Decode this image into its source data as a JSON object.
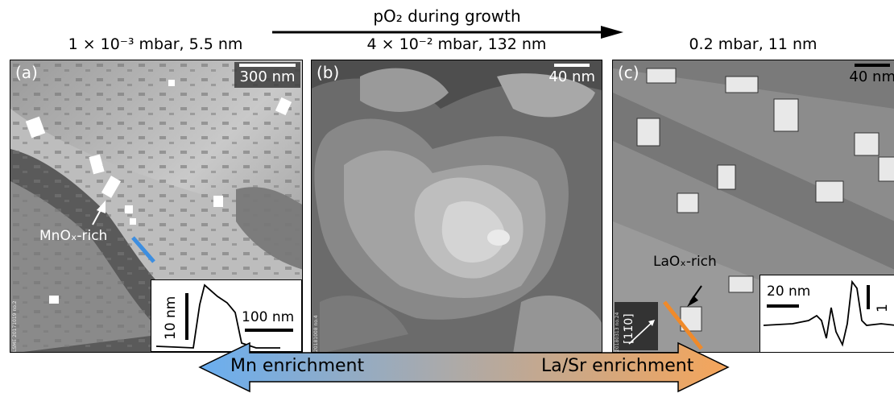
{
  "header": {
    "growth_label": "pO₂ during growth",
    "conditions": [
      "1 × 10⁻³ mbar, 5.5 nm",
      "4 × 10⁻² mbar, 132 nm",
      "0.2 mbar, 11 nm"
    ]
  },
  "panels": {
    "a": {
      "label": "(a)",
      "scale": "300 nm",
      "annotation": "MnOₓ-rich",
      "inset_y": "10 nm",
      "inset_x": "100 nm",
      "sample_id": "LSME 20171019 no.2"
    },
    "b": {
      "label": "(b)",
      "scale": "40 nm",
      "sample_id": "20181008 no.4"
    },
    "c": {
      "label": "(c)",
      "scale": "40 nm",
      "annotation": "LaOₓ-rich",
      "direction": "[11̄0]",
      "inset_x": "20 nm",
      "inset_y": "1 nm",
      "sample_id": "20180313 no.24"
    }
  },
  "bottom_arrow": {
    "left_label": "Mn enrichment",
    "right_label": "La/Sr enrichment",
    "left_color": "#6aaef0",
    "right_color": "#f5a55a"
  },
  "colors": {
    "mn_line": "#3d8ee0",
    "la_line": "#f08a2a"
  }
}
